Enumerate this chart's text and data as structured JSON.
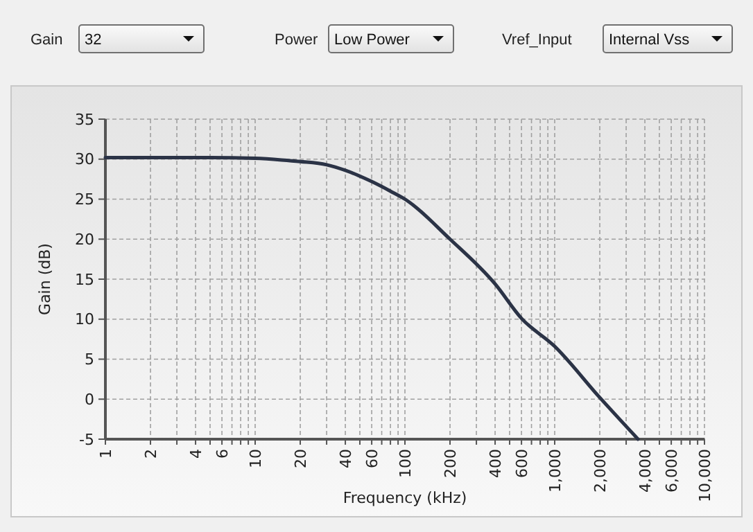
{
  "chart_data": {
    "type": "line",
    "xlabel": "Frequency (kHz)",
    "ylabel": "Gain (dB)",
    "annotations": [
      "Gain",
      "32",
      "Power",
      "Low Power",
      "Vref_Input",
      "Internal Vss"
    ],
    "log": "x",
    "grid": true,
    "marker": "none",
    "line_style": "solid",
    "xlim": [
      1,
      10000
    ],
    "ylim": [
      -5,
      35
    ],
    "xticks": [
      {
        "value": 1,
        "label": "1"
      },
      {
        "value": 2,
        "label": "2"
      },
      {
        "value": 3,
        "label": null
      },
      {
        "value": 4,
        "label": "4"
      },
      {
        "value": 5,
        "label": null
      },
      {
        "value": 6,
        "label": "6"
      },
      {
        "value": 7,
        "label": null
      },
      {
        "value": 8,
        "label": null
      },
      {
        "value": 9,
        "label": null
      },
      {
        "value": 10,
        "label": "10"
      },
      {
        "value": 20,
        "label": "20"
      },
      {
        "value": 30,
        "label": null
      },
      {
        "value": 40,
        "label": "40"
      },
      {
        "value": 50,
        "label": null
      },
      {
        "value": 60,
        "label": "60"
      },
      {
        "value": 70,
        "label": null
      },
      {
        "value": 80,
        "label": null
      },
      {
        "value": 90,
        "label": null
      },
      {
        "value": 100,
        "label": "100"
      },
      {
        "value": 200,
        "label": "200"
      },
      {
        "value": 300,
        "label": null
      },
      {
        "value": 400,
        "label": "400"
      },
      {
        "value": 500,
        "label": null
      },
      {
        "value": 600,
        "label": "600"
      },
      {
        "value": 700,
        "label": null
      },
      {
        "value": 800,
        "label": null
      },
      {
        "value": 900,
        "label": null
      },
      {
        "value": 1000,
        "label": "1,000"
      },
      {
        "value": 2000,
        "label": "2,000"
      },
      {
        "value": 3000,
        "label": null
      },
      {
        "value": 4000,
        "label": "4,000"
      },
      {
        "value": 5000,
        "label": null
      },
      {
        "value": 6000,
        "label": "6,000"
      },
      {
        "value": 7000,
        "label": null
      },
      {
        "value": 8000,
        "label": null
      },
      {
        "value": 9000,
        "label": null
      },
      {
        "value": 10000,
        "label": "10,000"
      }
    ],
    "yticks": [
      -5,
      0,
      5,
      10,
      15,
      20,
      25,
      30,
      35
    ],
    "series": [
      {
        "color": "#2b3346",
        "x": [
          1,
          5,
          10,
          15,
          20,
          30,
          40,
          60,
          80,
          100,
          200,
          400,
          600,
          1000,
          2000,
          3600
        ],
        "values": [
          30.2,
          30.2,
          30.1,
          29.9,
          29.7,
          29.3,
          28.6,
          27.2,
          26,
          25,
          20,
          14.4,
          10.1,
          6.6,
          0.2,
          -5
        ]
      }
    ]
  }
}
